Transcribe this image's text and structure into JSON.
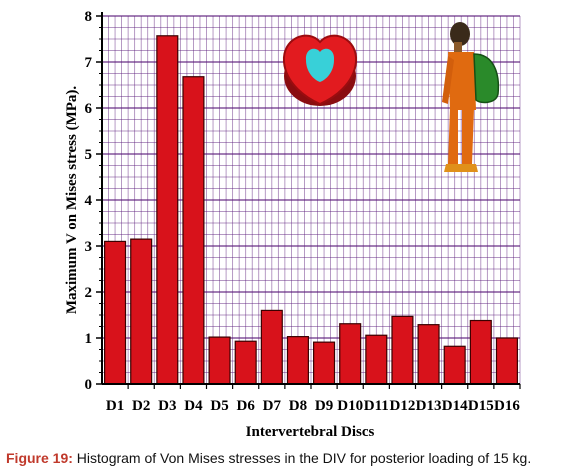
{
  "caption": {
    "label": "Figure 19:",
    "text": " Histogram of Von Mises stresses in the DIV for posterior loading of 15 kg."
  },
  "colors": {
    "bar_fill": "#d8121b",
    "bar_stroke": "#3a0000",
    "grid": "#5a1a7a",
    "axis": "#000000"
  },
  "illustrations": {
    "disc": "intervertebral-disc-stress-contour",
    "figure": "person-carrying-backpack"
  },
  "chart_data": {
    "type": "bar",
    "title": "",
    "xlabel": "Intervertebral Discs",
    "ylabel": "Maximum V on Mises stress (MPa).",
    "ylim": [
      0,
      8
    ],
    "yticks": [
      0,
      1,
      2,
      3,
      4,
      5,
      6,
      7,
      8
    ],
    "grid": true,
    "categories": [
      "D1",
      "D2",
      "D3",
      "D4",
      "D5",
      "D6",
      "D7",
      "D8",
      "D9",
      "D10",
      "D11",
      "D12",
      "D13",
      "D14",
      "D15",
      "D16"
    ],
    "values": [
      3.1,
      3.15,
      7.57,
      6.68,
      1.02,
      0.93,
      1.6,
      1.03,
      0.91,
      1.31,
      1.06,
      1.47,
      1.29,
      0.82,
      1.38,
      1.0
    ]
  }
}
